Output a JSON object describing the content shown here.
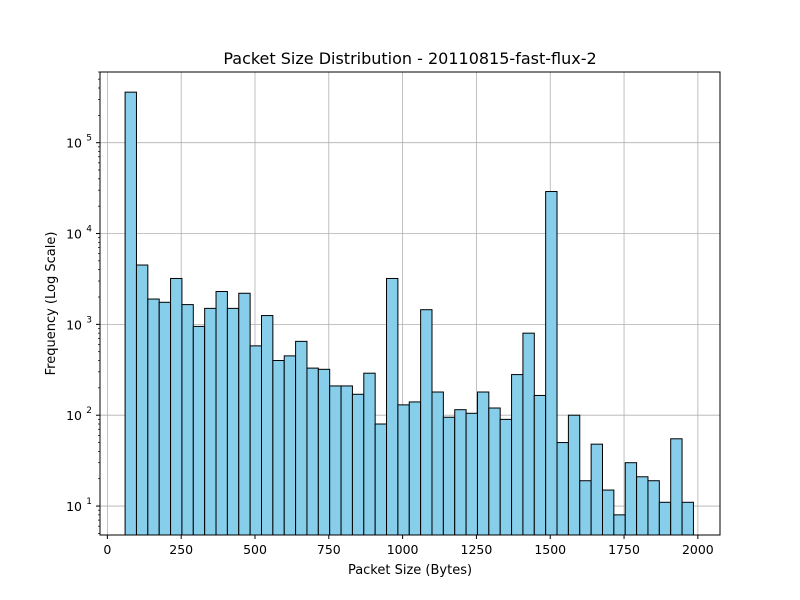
{
  "chart_data": {
    "type": "bar",
    "subtype": "histogram",
    "title": "Packet Size Distribution - 20110815-fast-flux-2",
    "xlabel": "Packet Size (Bytes)",
    "ylabel": "Frequency (Log Scale)",
    "yscale": "log",
    "grid": true,
    "xlim": [
      -25,
      2075
    ],
    "ylim": [
      4.8,
      600000
    ],
    "x_ticks": [
      0,
      250,
      500,
      750,
      1000,
      1250,
      1500,
      1750,
      2000
    ],
    "x_tick_labels": [
      "0",
      "250",
      "500",
      "750",
      "1000",
      "1250",
      "1500",
      "1750",
      "2000"
    ],
    "y_ticks": [
      10,
      100,
      1000,
      10000,
      100000
    ],
    "y_tick_labels": [
      {
        "base": "10",
        "exp": "1"
      },
      {
        "base": "10",
        "exp": "2"
      },
      {
        "base": "10",
        "exp": "3"
      },
      {
        "base": "10",
        "exp": "4"
      },
      {
        "base": "10",
        "exp": "5"
      }
    ],
    "bar_color": "#87ceeb",
    "edge_color": "#000000",
    "bin_edges": [
      60,
      98.5,
      137,
      175.5,
      214,
      252.5,
      291,
      329.5,
      368,
      406.5,
      445,
      483.5,
      522,
      560.5,
      599,
      637.5,
      676,
      714.5,
      753,
      791.5,
      830,
      868.5,
      907,
      945.5,
      984,
      1022.5,
      1061,
      1099.5,
      1138,
      1176.5,
      1215,
      1253.5,
      1292,
      1330.5,
      1369,
      1407.5,
      1446,
      1484.5,
      1523,
      1561.5,
      1600,
      1638.5,
      1677,
      1715.5,
      1754,
      1792.5,
      1831,
      1869.5,
      1908,
      1946.5,
      1985
    ],
    "values": [
      360000,
      4500,
      1900,
      1750,
      3200,
      1650,
      950,
      1500,
      2300,
      1500,
      2200,
      580,
      1250,
      400,
      450,
      650,
      330,
      320,
      210,
      210,
      170,
      290,
      80,
      3200,
      130,
      140,
      1450,
      180,
      95,
      115,
      105,
      180,
      120,
      90,
      280,
      800,
      165,
      29000,
      50,
      100,
      19,
      48,
      15,
      8,
      30,
      21,
      19,
      11,
      55,
      11
    ]
  }
}
